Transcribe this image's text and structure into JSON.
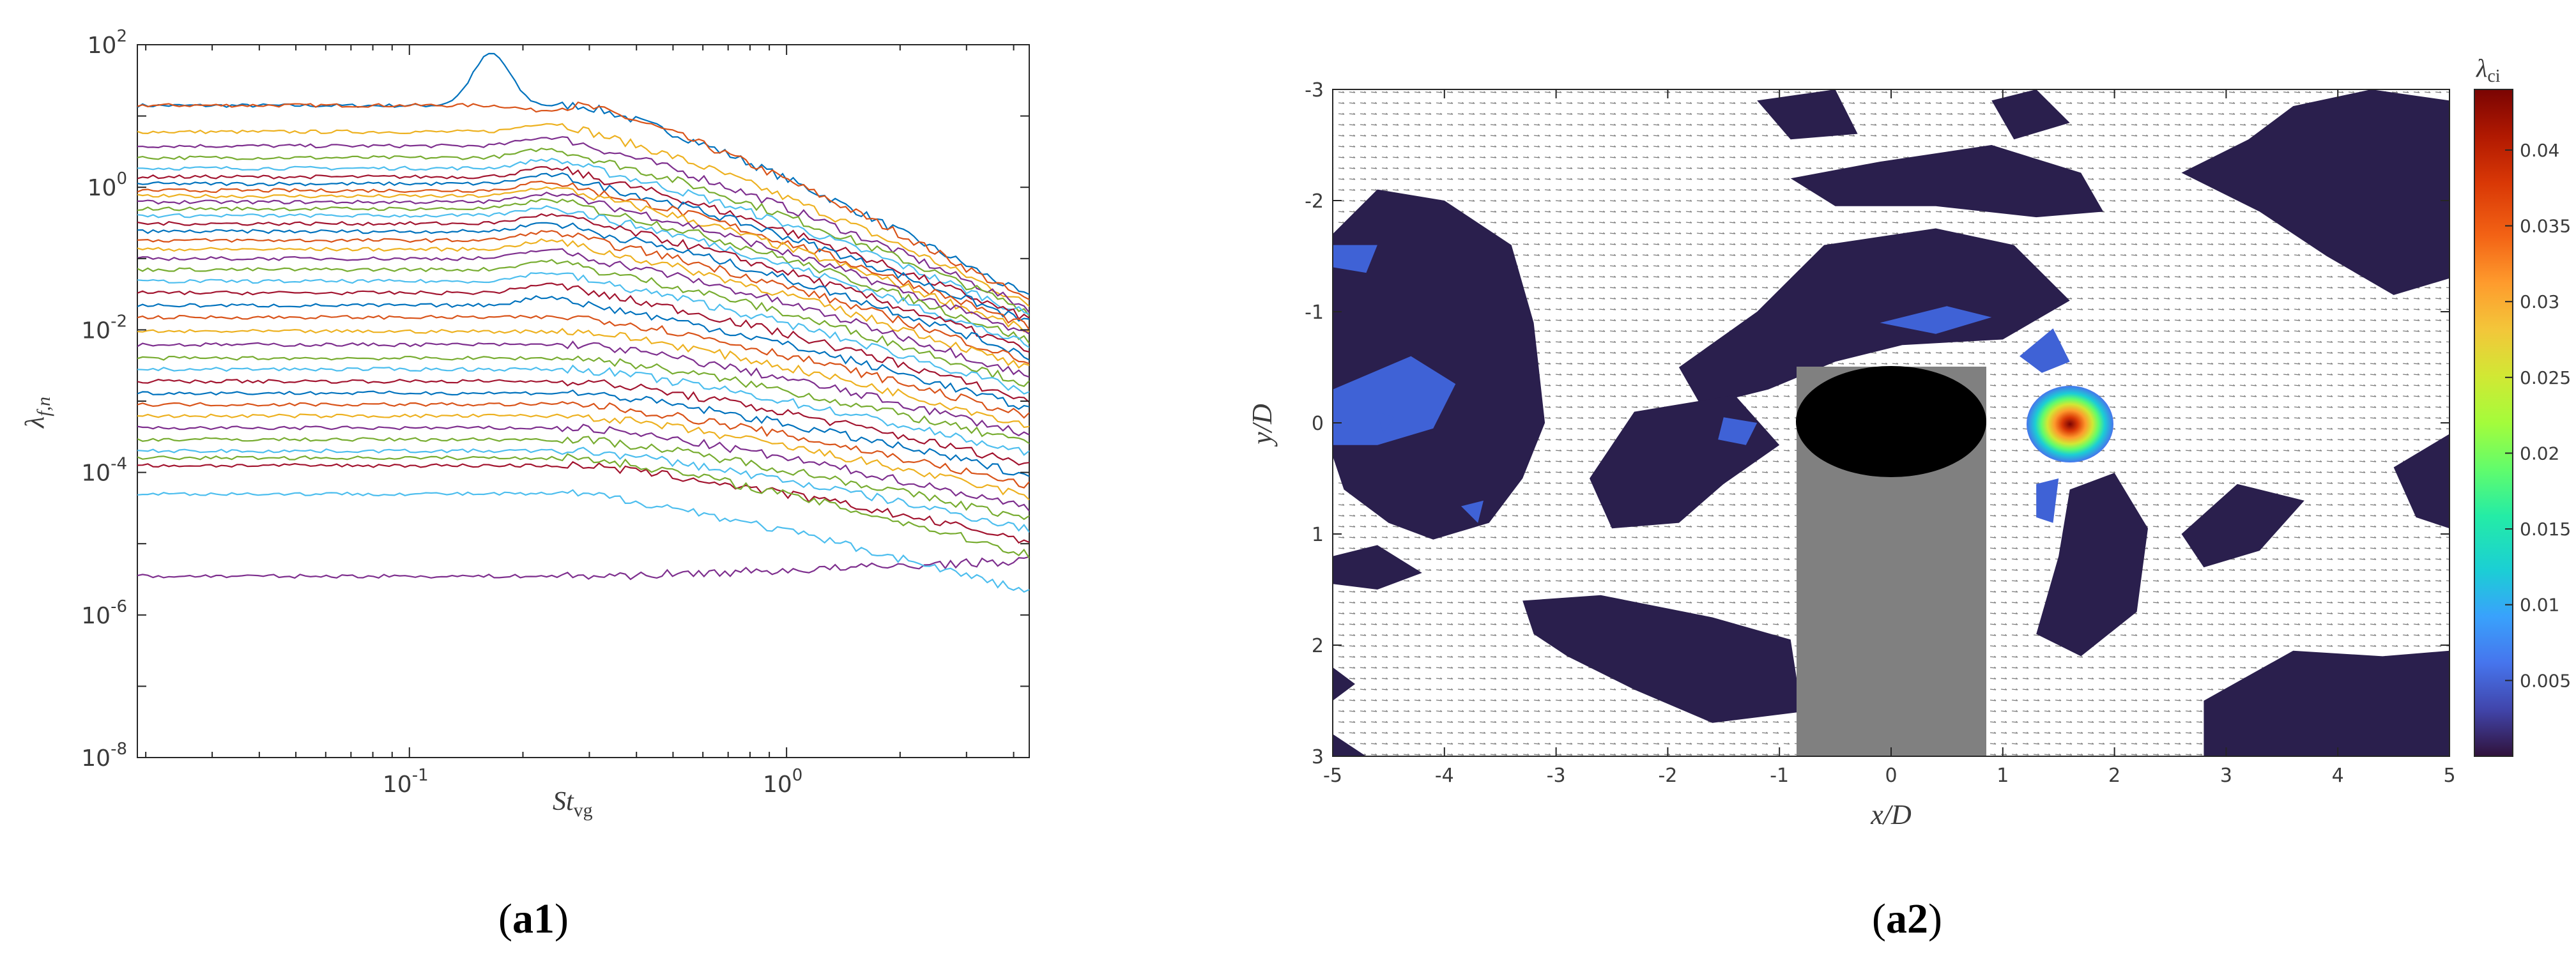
{
  "chart_data": [
    {
      "panel": "(a1)",
      "type": "line",
      "xlabel": "St",
      "xlabel_sub": "vg",
      "ylabel": "λ",
      "ylabel_sub": "f,n",
      "xscale": "log",
      "yscale": "log",
      "xlim": [
        0.019,
        4.4
      ],
      "ylim": [
        1e-08,
        100
      ],
      "x_ticks": [
        {
          "v": 0.1,
          "base": "10",
          "exp": "-1"
        },
        {
          "v": 1,
          "base": "10",
          "exp": "0"
        }
      ],
      "y_ticks": [
        {
          "v": 1e-08,
          "base": "10",
          "exp": "-8"
        },
        {
          "v": 1e-06,
          "base": "10",
          "exp": "-6"
        },
        {
          "v": 0.0001,
          "base": "10",
          "exp": "-4"
        },
        {
          "v": 0.01,
          "base": "10",
          "exp": "-2"
        },
        {
          "v": 1,
          "base": "10",
          "exp": "0"
        },
        {
          "v": 100,
          "base": "10",
          "exp": "2"
        }
      ],
      "grid": false,
      "series_count": 38,
      "series_description": "eigenvalue spectra; each curve roughly flat at low St, with decay beyond St ≈ 0.3 to 4.4",
      "series": [
        {
          "low": 14,
          "end": 0.028,
          "peak": {
            "x": 0.165,
            "y": 75
          },
          "color": "#0072BD"
        },
        {
          "low": 14.1,
          "end": 0.025,
          "peak": {
            "x": 0.22,
            "y": 12
          },
          "color": "#D95319"
        },
        {
          "low": 6,
          "end": 0.022,
          "color": "#EDB120"
        },
        {
          "low": 3.8,
          "end": 0.02,
          "color": "#7E2F8E"
        },
        {
          "low": 2.6,
          "end": 0.018,
          "color": "#77AC30"
        },
        {
          "low": 1.85,
          "end": 0.016,
          "color": "#4DBEEE"
        },
        {
          "low": 1.4,
          "end": 0.014,
          "color": "#A2142F"
        },
        {
          "low": 1.12,
          "end": 0.0125,
          "color": "#0072BD"
        },
        {
          "low": 0.9,
          "end": 0.011,
          "color": "#D95319"
        },
        {
          "low": 0.75,
          "end": 0.0095,
          "color": "#EDB120"
        },
        {
          "low": 0.62,
          "end": 0.0082,
          "color": "#7E2F8E"
        },
        {
          "low": 0.5,
          "end": 0.007,
          "color": "#77AC30"
        },
        {
          "low": 0.4,
          "end": 0.006,
          "color": "#4DBEEE"
        },
        {
          "low": 0.31,
          "end": 0.0051,
          "color": "#A2142F"
        },
        {
          "low": 0.24,
          "end": 0.0043,
          "color": "#0072BD"
        },
        {
          "low": 0.18,
          "end": 0.0035,
          "color": "#D95319"
        },
        {
          "low": 0.135,
          "end": 0.0028,
          "color": "#EDB120"
        },
        {
          "low": 0.1,
          "end": 0.0022,
          "color": "#7E2F8E"
        },
        {
          "low": 0.07,
          "end": 0.0017,
          "color": "#77AC30"
        },
        {
          "low": 0.048,
          "end": 0.0013,
          "color": "#4DBEEE"
        },
        {
          "low": 0.033,
          "end": 0.001,
          "color": "#A2142F"
        },
        {
          "low": 0.022,
          "end": 0.00078,
          "color": "#0072BD"
        },
        {
          "low": 0.015,
          "end": 0.0006,
          "color": "#D95319"
        },
        {
          "low": 0.0095,
          "end": 0.00045,
          "color": "#EDB120"
        },
        {
          "low": 0.0062,
          "end": 0.00034,
          "color": "#7E2F8E"
        },
        {
          "low": 0.004,
          "end": 0.00025,
          "color": "#77AC30"
        },
        {
          "low": 0.0028,
          "end": 0.00018,
          "color": "#4DBEEE"
        },
        {
          "low": 0.0019,
          "end": 0.00013,
          "color": "#A2142F"
        },
        {
          "low": 0.0013,
          "end": 9.2e-05,
          "color": "#0072BD"
        },
        {
          "low": 0.0009,
          "end": 6.5e-05,
          "color": "#D95319"
        },
        {
          "low": 0.00062,
          "end": 4.6e-05,
          "color": "#EDB120"
        },
        {
          "low": 0.00042,
          "end": 3.2e-05,
          "color": "#7E2F8E"
        },
        {
          "low": 0.00029,
          "end": 2.2e-05,
          "color": "#77AC30"
        },
        {
          "low": 0.0002,
          "end": 1.6e-05,
          "color": "#4DBEEE"
        },
        {
          "low": 0.000125,
          "end": 1.1e-05,
          "color": "#A2142F"
        },
        {
          "low": 3.5e-06,
          "end": 5.8e-06,
          "color": "#7E2F8E"
        },
        {
          "low": 0.00016,
          "end": 7e-06,
          "color": "#77AC30"
        },
        {
          "low": 5e-05,
          "end": 2.1e-06,
          "color": "#4DBEEE"
        }
      ]
    },
    {
      "panel": "(a2)",
      "type": "heatmap",
      "xlabel": "x/D",
      "ylabel": "y/D",
      "xlim": [
        -5,
        5
      ],
      "ylim": [
        -3,
        3
      ],
      "y_inverted": true,
      "x_ticks": [
        "-5",
        "-4",
        "-3",
        "-2",
        "-1",
        "0",
        "1",
        "2",
        "3",
        "4",
        "5"
      ],
      "y_ticks": [
        "-3",
        "-2",
        "-1",
        "0",
        "1",
        "2",
        "3"
      ],
      "colorbar": {
        "label": "λ",
        "label_sub": "ci",
        "range": [
          0,
          0.044
        ],
        "ticks": [
          "0.005",
          "0.01",
          "0.015",
          "0.02",
          "0.025",
          "0.03",
          "0.035",
          "0.04"
        ],
        "colormap": "turbo"
      },
      "obstacle": {
        "x_range": [
          -0.85,
          0.85
        ],
        "y_range": [
          -0.5,
          3
        ],
        "color": "#808080"
      },
      "cylinder": {
        "center": [
          0,
          0
        ],
        "rx": 0.85,
        "ry": 0.5,
        "color": "#000000"
      },
      "vortex_peak": {
        "x": 1.6,
        "y": 0.05,
        "value": 0.044
      },
      "background_region_color": "#2a1f4d",
      "has_vector_field": true
    }
  ],
  "captions": {
    "left": "a1",
    "right": "a2"
  }
}
